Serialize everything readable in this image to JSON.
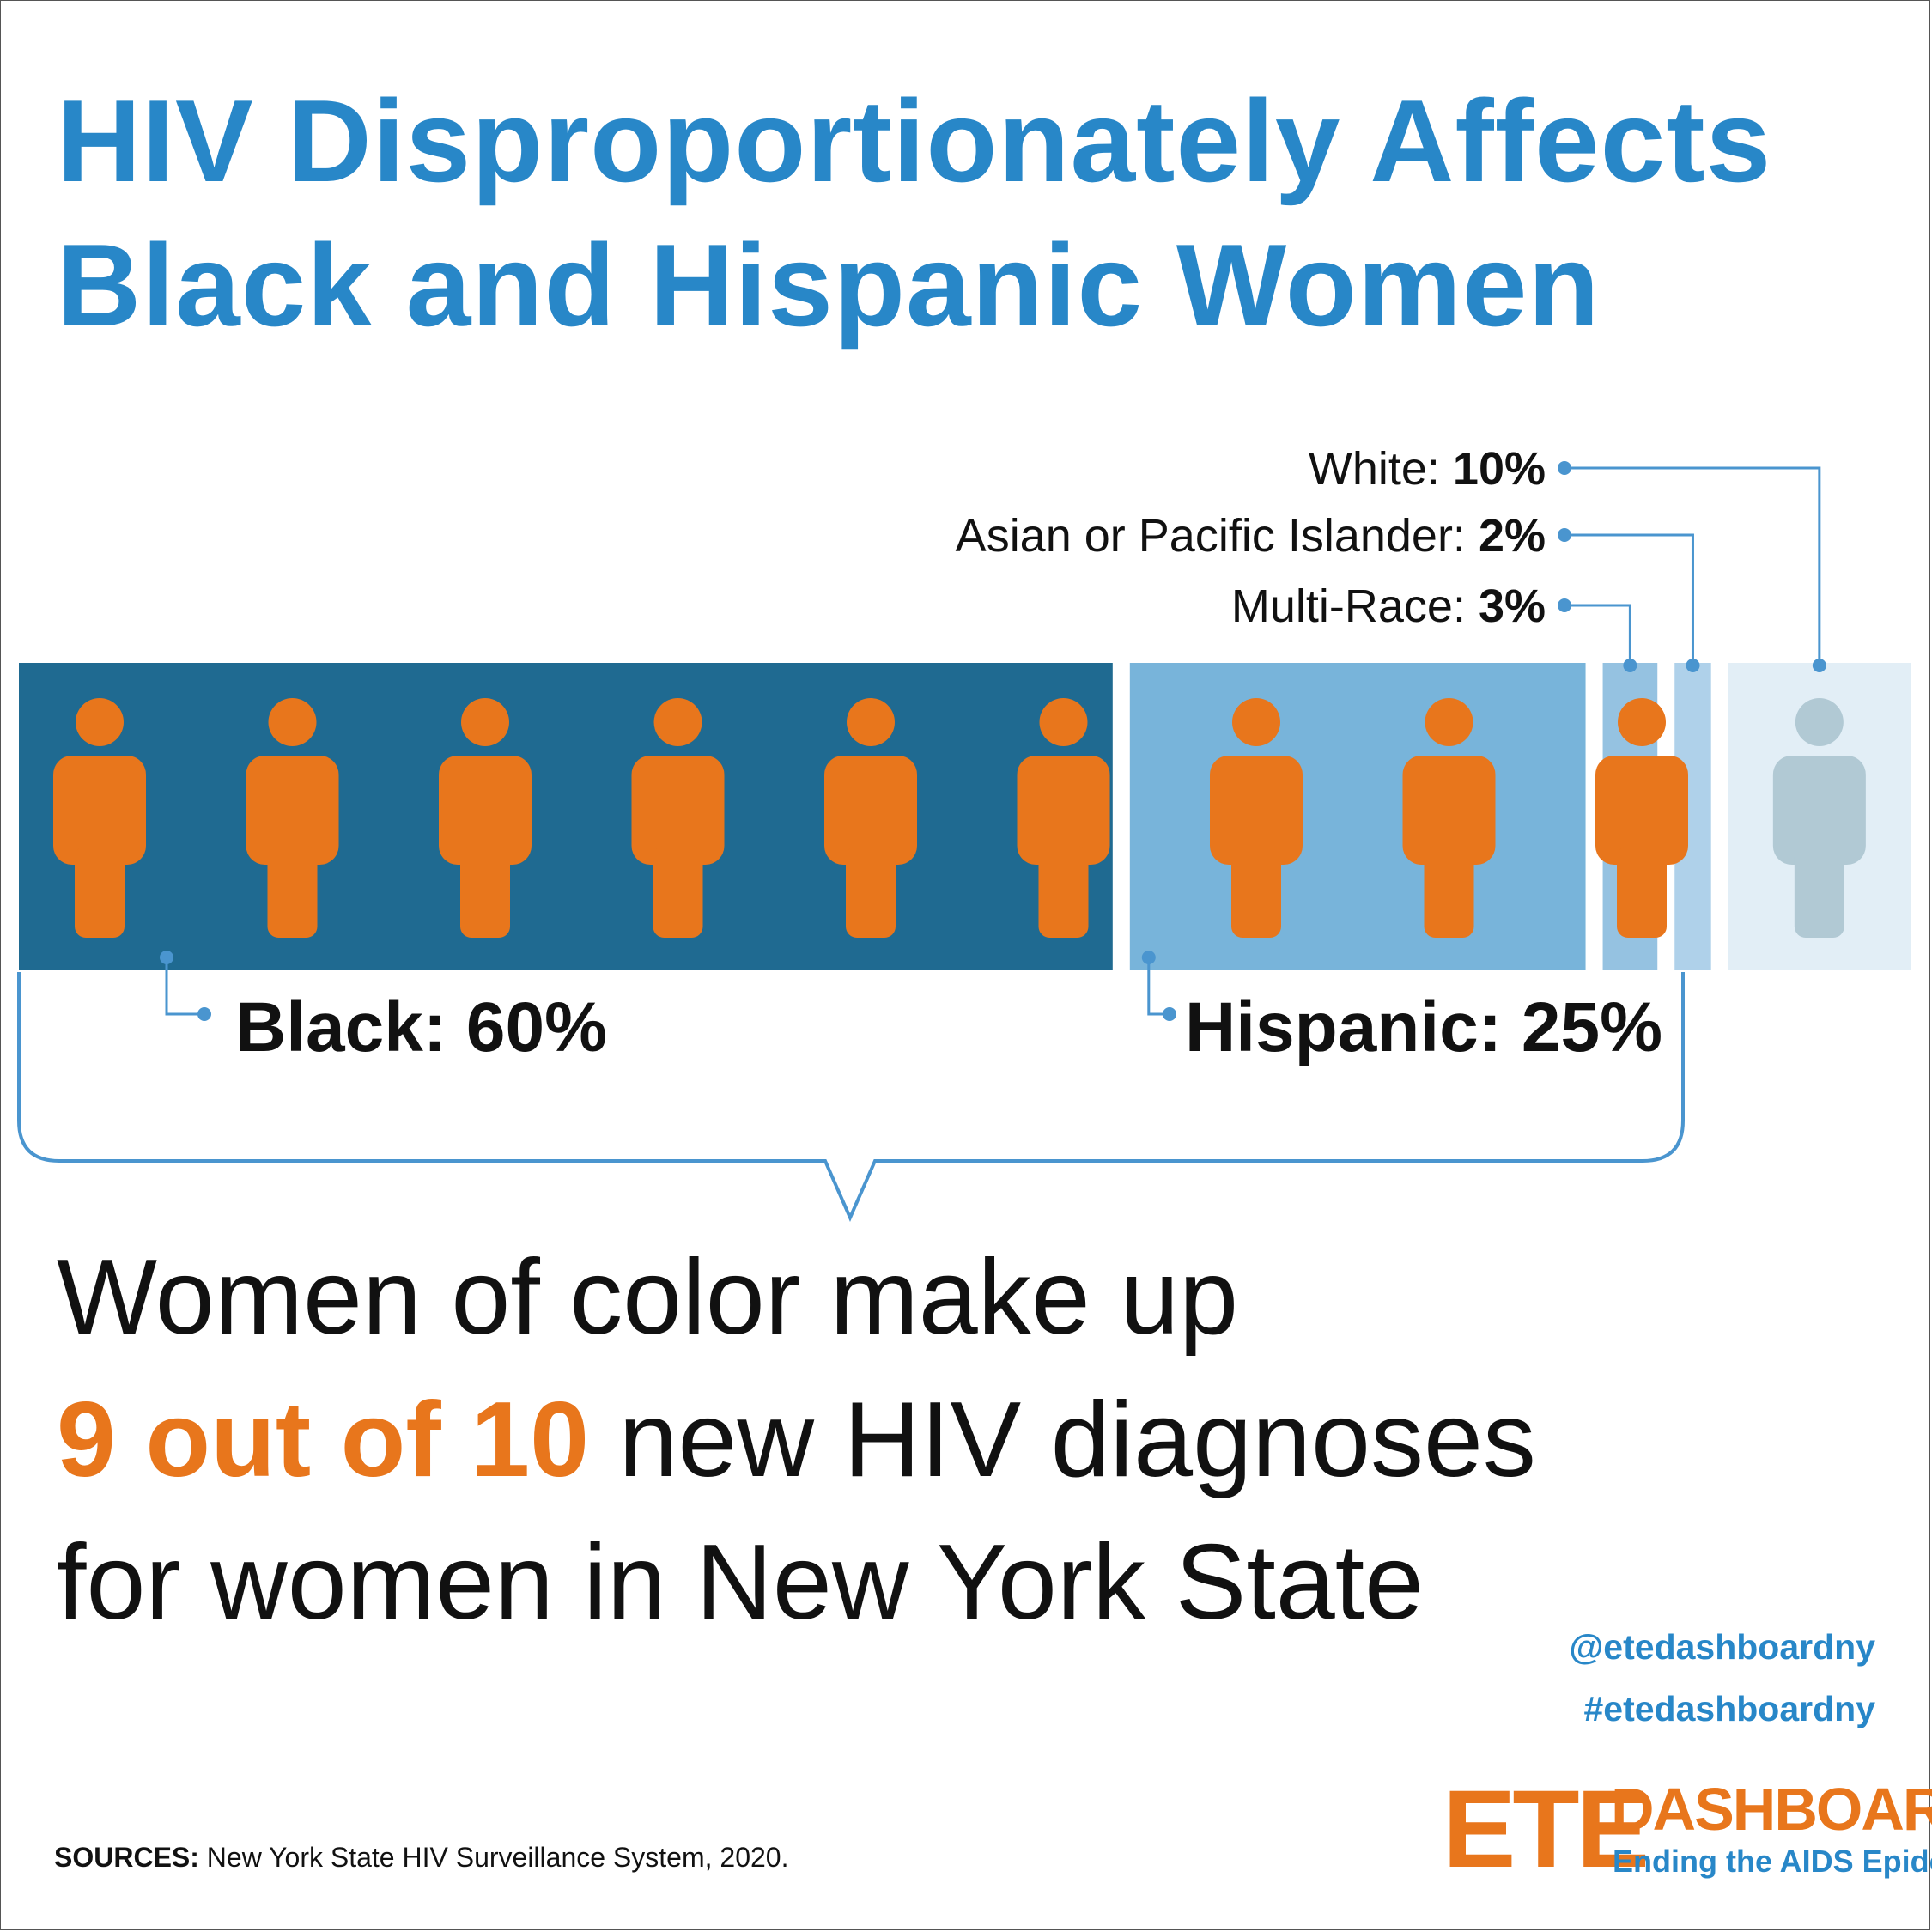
{
  "title": {
    "line1": "HIV Disproportionately Affects",
    "line2": "Black and Hispanic Women"
  },
  "chart_data": {
    "type": "bar",
    "orientation": "horizontal-stacked",
    "categories": [
      "Black",
      "Hispanic",
      "Multi-Race",
      "Asian or Pacific Islander",
      "White"
    ],
    "values": [
      60,
      25,
      3,
      2,
      10
    ],
    "labels": [
      {
        "name": "Black",
        "prefix": "Black: ",
        "value": "60%"
      },
      {
        "name": "Hispanic",
        "prefix": "Hispanic: ",
        "value": "25%"
      },
      {
        "name": "Multi-Race",
        "prefix": "Multi-Race: ",
        "value": "3%"
      },
      {
        "name": "Asian or Pacific Islander",
        "prefix": "Asian or Pacific Islander: ",
        "value": "2%"
      },
      {
        "name": "White",
        "prefix": "White: ",
        "value": "10%"
      }
    ],
    "colors": {
      "Black": "#1f6a91",
      "Hispanic": "#78b4da",
      "Multi-Race": "#95c2e1",
      "Asian or Pacific Islander": "#afd1ea",
      "White": "#e2eef6"
    },
    "people": {
      "women_of_color": 9,
      "white": 1,
      "highlight_color": "#e8761c",
      "muted_color": "#b1c9d4"
    }
  },
  "headline": {
    "line1": "Women of color make up",
    "highlight": "9 out of 10",
    "line2_rest": " new HIV diagnoses",
    "line3": "for women in New York State"
  },
  "social": {
    "handle": "@etedashboardny",
    "hashtag": "#etedashboardny"
  },
  "sources": {
    "label": "SOURCES:",
    "text": " New York State HIV Surveillance System, 2020."
  },
  "logo": {
    "ete": "ETE",
    "dashboard": "DASHBOARD",
    "tagline": "Ending the AIDS Epidemic"
  },
  "colors": {
    "accent_blue": "#2887c8",
    "accent_orange": "#e8761c",
    "connector": "#4a95cf"
  }
}
